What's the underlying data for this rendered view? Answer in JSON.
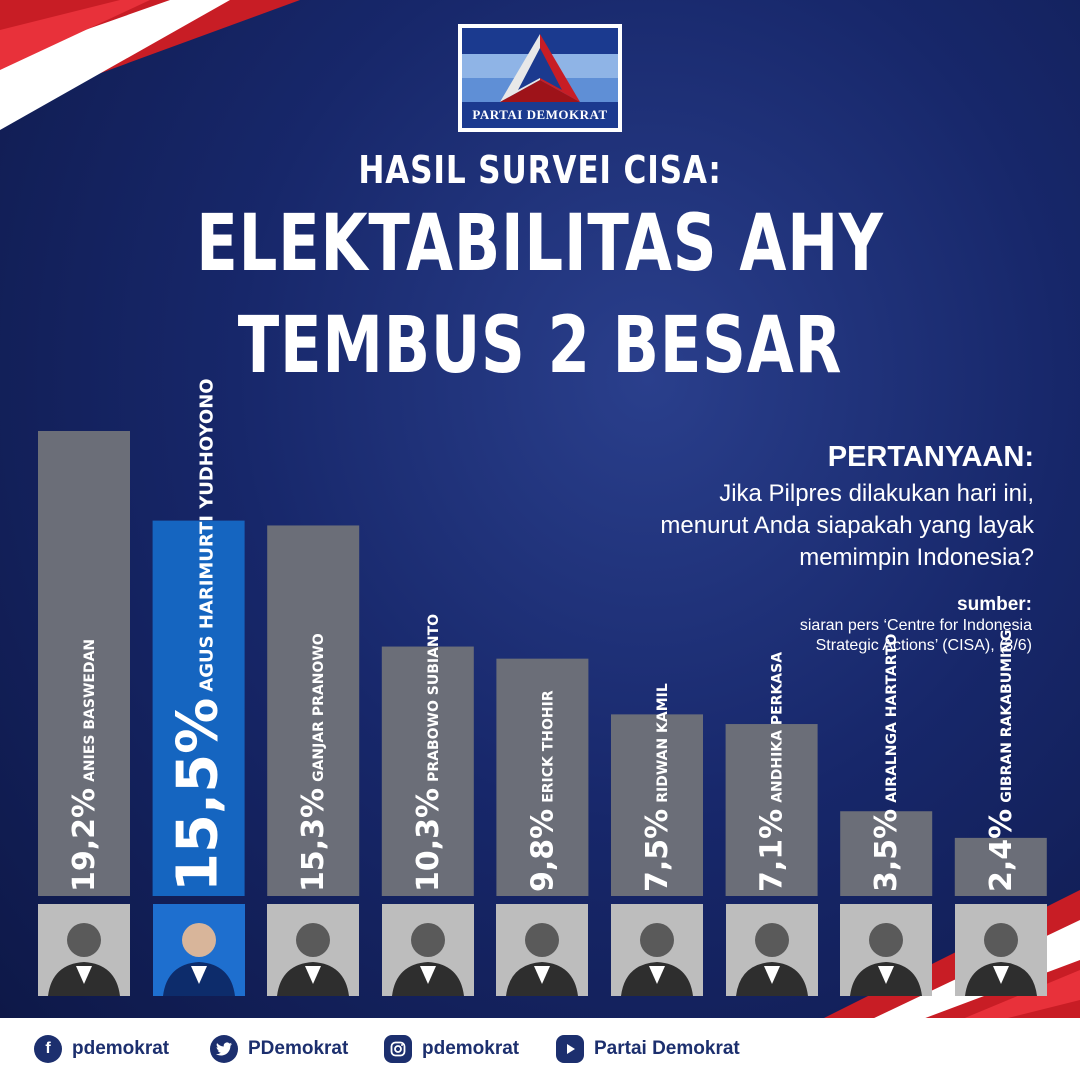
{
  "logo": {
    "text": "PARTAI DEMOKRAT"
  },
  "header": {
    "subtitle": "HASIL SURVEI CISA:",
    "title_line1": "ELEKTABILITAS AHY",
    "title_line2": "TEMBUS 2 BESAR"
  },
  "question": {
    "heading": "PERTANYAAN:",
    "line1": "Jika Pilpres dilakukan hari ini,",
    "line2": "menurut Anda siapakah yang layak",
    "line3": "memimpin Indonesia?"
  },
  "source": {
    "heading": "sumber:",
    "line1": "siaran pers ‘Centre for Indonesia",
    "line2": "Strategic Actions’ (CISA), (3/6)"
  },
  "colors": {
    "bar_default": "#6b6e78",
    "bar_highlight": "#1565c0",
    "background": "#17276a",
    "accent_red": "#d8222a"
  },
  "chart_data": {
    "type": "bar",
    "categories": [
      "ANIES BASWEDAN",
      "AGUS HARIMURTI YUDHOYONO",
      "GANJAR PRANOWO",
      "PRABOWO SUBIANTO",
      "ERICK THOHIR",
      "RIDWAN KAMIL",
      "ANDHIKA PERKASA",
      "AIRALNGA HARTARTO",
      "GIBRAN RAKABUMING"
    ],
    "values": [
      19.2,
      15.5,
      15.3,
      10.3,
      9.8,
      7.5,
      7.1,
      3.5,
      2.4
    ],
    "value_labels": [
      "19,2%",
      "15,5%",
      "15,3%",
      "10,3%",
      "9,8%",
      "7,5%",
      "7,1%",
      "3,5%",
      "2,4%"
    ],
    "highlight_index": 1,
    "ylim": [
      0,
      19.2
    ]
  },
  "footer": {
    "facebook": "pdemokrat",
    "twitter": "PDemokrat",
    "instagram": "pdemokrat",
    "youtube": "Partai Demokrat",
    "icons": [
      "facebook-icon",
      "twitter-icon",
      "instagram-icon",
      "youtube-icon"
    ]
  }
}
